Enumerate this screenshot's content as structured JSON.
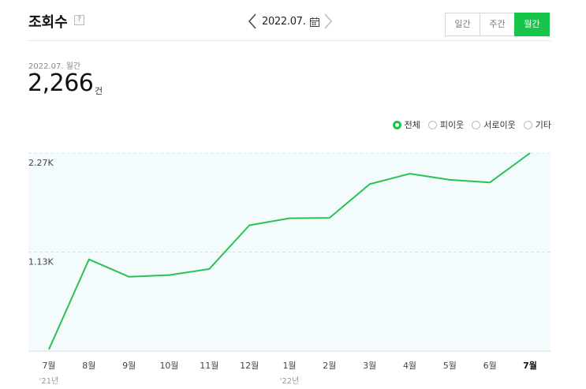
{
  "header": {
    "title": "조회수",
    "help": "?",
    "date": "2022.07.",
    "tabs": [
      {
        "label": "일간",
        "active": false
      },
      {
        "label": "주간",
        "active": false
      },
      {
        "label": "월간",
        "active": true
      }
    ]
  },
  "summary": {
    "period": "2022.07. 월간",
    "value": "2,266",
    "unit": "건"
  },
  "legend": {
    "options": [
      {
        "label": "전체",
        "selected": true
      },
      {
        "label": "피이웃",
        "selected": false
      },
      {
        "label": "서로이웃",
        "selected": false
      },
      {
        "label": "기타",
        "selected": false
      }
    ]
  },
  "colors": {
    "accent": "#19c44b",
    "line": "#2bc154",
    "area": "#f3fbfd"
  },
  "chart_data": {
    "type": "line",
    "categories": [
      "7월",
      "8월",
      "9월",
      "10월",
      "11월",
      "12월",
      "1월",
      "2월",
      "3월",
      "4월",
      "5월",
      "6월",
      "7월"
    ],
    "year_labels": [
      "'21년",
      "",
      "",
      "",
      "",
      "",
      "'22년",
      "",
      "",
      "",
      "",
      "",
      ""
    ],
    "series": [
      {
        "values": [
          20,
          1050,
          850,
          870,
          940,
          1440,
          1520,
          1525,
          1910,
          2030,
          1960,
          1930,
          2266
        ]
      }
    ],
    "yticks": [
      {
        "value": 1133,
        "label": "1.13K"
      },
      {
        "value": 2266,
        "label": "2.27K"
      }
    ],
    "ylim": [
      0,
      2266
    ],
    "grid": true
  }
}
